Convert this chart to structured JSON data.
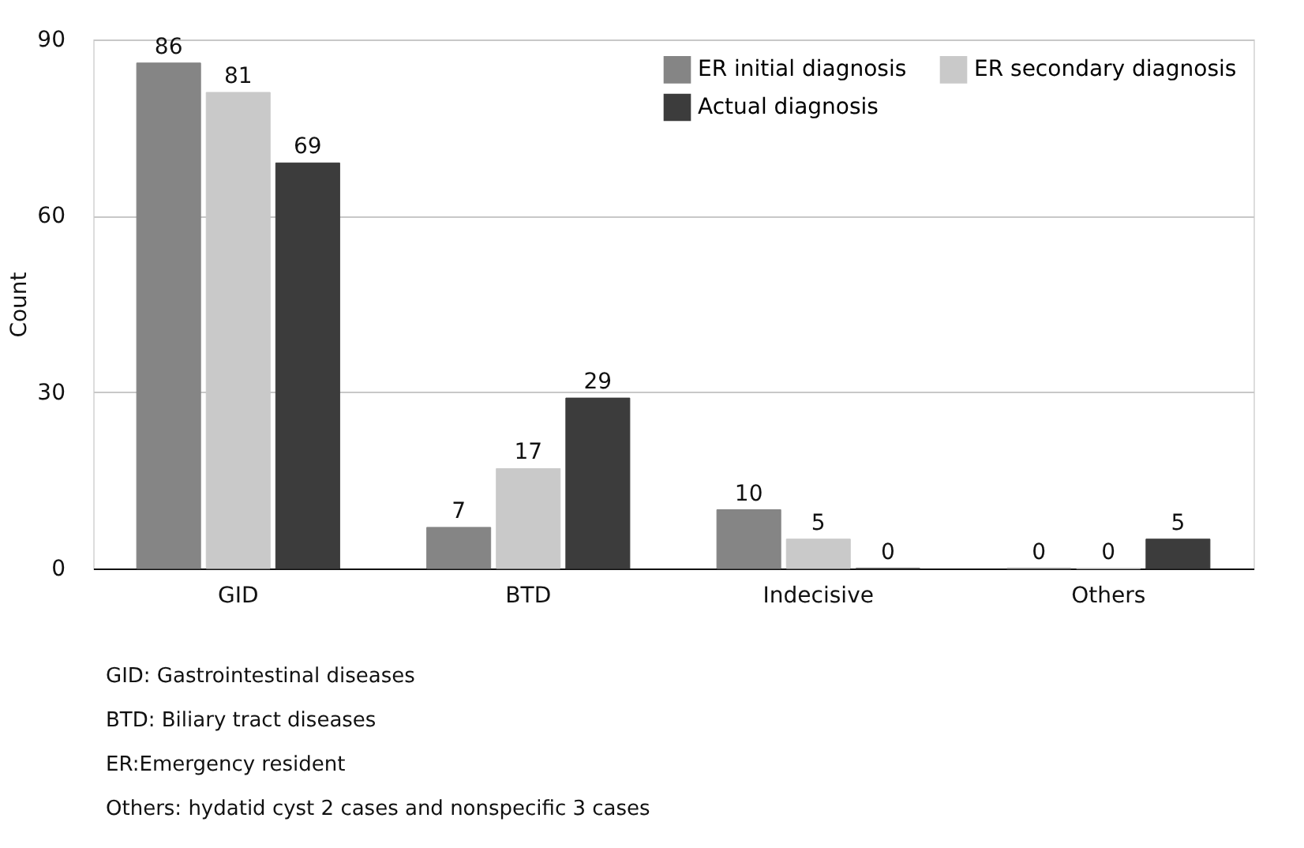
{
  "chart_data": {
    "type": "bar",
    "ylabel": "Count",
    "categories": [
      "GID",
      "BTD",
      "Indecisive",
      "Others"
    ],
    "series": [
      {
        "name": "ER initial diagnosis",
        "color": "#858585",
        "values": [
          86,
          7,
          10,
          0
        ]
      },
      {
        "name": "ER secondary diagnosis",
        "color": "#c9c9c9",
        "values": [
          81,
          17,
          5,
          0
        ]
      },
      {
        "name": "Actual diagnosis",
        "color": "#3c3c3c",
        "values": [
          69,
          29,
          0,
          5
        ]
      }
    ],
    "ylim": [
      0,
      90
    ],
    "yticks": [
      0,
      30,
      60,
      90
    ],
    "grid": "y",
    "legend": "top right",
    "data_labels": true,
    "annotations": [
      "GID: Gastrointestinal diseases",
      "BTD: Biliary tract diseases",
      "ER:Emergency resident",
      "Others: hydatid cyst 2 cases and nonspecific 3 cases"
    ]
  }
}
